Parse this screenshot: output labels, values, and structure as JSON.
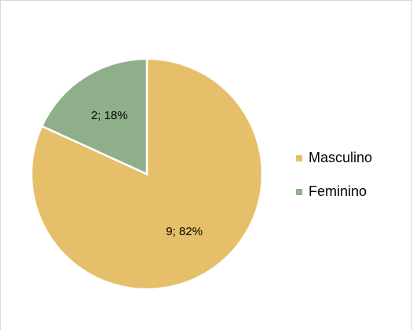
{
  "chart_data": {
    "type": "pie",
    "categories": [
      "Masculino",
      "Feminino"
    ],
    "values": [
      9,
      2
    ],
    "value_labels": [
      "9; 82%",
      "2; 18%"
    ],
    "colors": [
      "#e6bf6a",
      "#8faf8a"
    ],
    "legend": "right"
  }
}
